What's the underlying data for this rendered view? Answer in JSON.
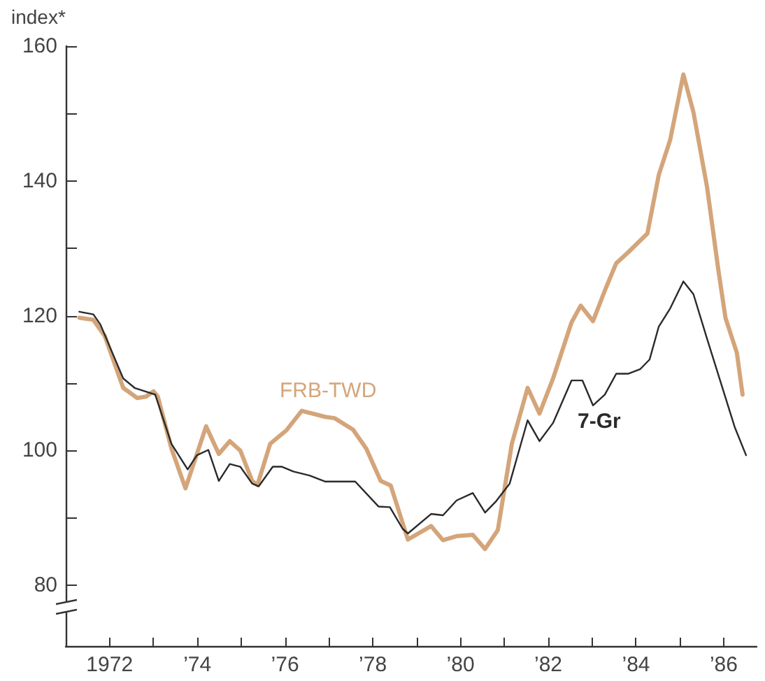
{
  "chart_data": {
    "type": "line",
    "ylabel": "index*",
    "xlim": [
      1971,
      1986.75
    ],
    "xticks": [
      {
        "value": 1971,
        "label": null
      },
      {
        "value": 1972,
        "label": "1972"
      },
      {
        "value": 1973,
        "label": null
      },
      {
        "value": 1974,
        "label": "’74"
      },
      {
        "value": 1975,
        "label": null
      },
      {
        "value": 1976,
        "label": "’76"
      },
      {
        "value": 1977,
        "label": null
      },
      {
        "value": 1978,
        "label": "’78"
      },
      {
        "value": 1979,
        "label": null
      },
      {
        "value": 1980,
        "label": "’80"
      },
      {
        "value": 1981,
        "label": null
      },
      {
        "value": 1982,
        "label": "’82"
      },
      {
        "value": 1983,
        "label": null
      },
      {
        "value": 1984,
        "label": "’84"
      },
      {
        "value": 1985,
        "label": null
      },
      {
        "value": 1986,
        "label": "’86"
      }
    ],
    "ylim": [
      71,
      160
    ],
    "yticks": [
      80,
      {
        "value": 90,
        "label": null
      },
      100,
      {
        "value": 110,
        "label": null
      },
      120,
      {
        "value": 130,
        "label": null
      },
      140,
      {
        "value": 150,
        "label": null
      },
      160
    ],
    "grid": false,
    "legend": false,
    "marker": "none",
    "line_style": "solid",
    "series": [
      {
        "name": "FRB-TWD",
        "color": "#d4a57a",
        "x": [
          1971.31,
          1971.63,
          1971.89,
          1972.31,
          1972.63,
          1972.83,
          1973.0,
          1973.1,
          1973.41,
          1973.73,
          1974.2,
          1974.49,
          1974.74,
          1974.98,
          1975.25,
          1975.37,
          1975.66,
          1976.03,
          1976.38,
          1976.92,
          1977.13,
          1977.55,
          1977.85,
          1978.18,
          1978.41,
          1978.8,
          1979.33,
          1979.6,
          1979.91,
          1980.28,
          1980.56,
          1980.85,
          1981.17,
          1981.53,
          1981.8,
          1982.11,
          1982.53,
          1982.74,
          1983.02,
          1983.3,
          1983.55,
          1983.82,
          1984.26,
          1984.52,
          1984.78,
          1985.08,
          1985.31,
          1985.62,
          1985.88,
          1986.04,
          1986.3,
          1986.43
        ],
        "values": [
          119.7,
          119.4,
          117,
          109.3,
          107.8,
          108,
          108.8,
          108,
          100.3,
          94.4,
          103.6,
          99.5,
          101.4,
          100,
          95.5,
          94.9,
          101,
          103,
          105.9,
          105,
          104.8,
          103.1,
          100.3,
          95.5,
          94.8,
          86.8,
          88.8,
          86.7,
          87.3,
          87.5,
          85.4,
          88.2,
          101,
          109.3,
          105.5,
          110.7,
          119,
          121.5,
          119.2,
          123.9,
          127.8,
          129.4,
          132.2,
          140.9,
          146.1,
          155.8,
          150.2,
          139.1,
          126.7,
          119.7,
          114.5,
          108.3
        ]
      },
      {
        "name": "7-Gr",
        "color": "#2a2a2a",
        "x": [
          1971.31,
          1971.63,
          1971.79,
          1972.31,
          1972.57,
          1973.04,
          1973.41,
          1973.78,
          1973.99,
          1974.25,
          1974.49,
          1974.74,
          1974.98,
          1975.25,
          1975.4,
          1975.72,
          1975.93,
          1976.19,
          1976.56,
          1976.92,
          1977.6,
          1978.13,
          1978.39,
          1978.68,
          1978.8,
          1979.33,
          1979.6,
          1979.91,
          1980.28,
          1980.56,
          1980.8,
          1981.12,
          1981.53,
          1981.8,
          1982.11,
          1982.53,
          1982.78,
          1983.02,
          1983.29,
          1983.55,
          1983.82,
          1984.1,
          1984.31,
          1984.52,
          1984.78,
          1985.08,
          1985.31,
          1985.62,
          1986.25,
          1986.51
        ],
        "values": [
          120.6,
          120.2,
          118.7,
          110.7,
          109.3,
          108.3,
          101,
          97.2,
          99.3,
          100.1,
          95.5,
          98,
          97.6,
          95.1,
          94.7,
          97.6,
          97.6,
          96.9,
          96.3,
          95.4,
          95.4,
          91.7,
          91.6,
          88.4,
          87.7,
          90.6,
          90.4,
          92.6,
          93.7,
          90.8,
          92.4,
          95.1,
          104.5,
          101.4,
          104.1,
          110.4,
          110.4,
          106.7,
          108.3,
          111.4,
          111.4,
          112.1,
          113.5,
          118.4,
          121.1,
          125.1,
          123.2,
          116.6,
          103.5,
          99.3
        ]
      }
    ]
  }
}
